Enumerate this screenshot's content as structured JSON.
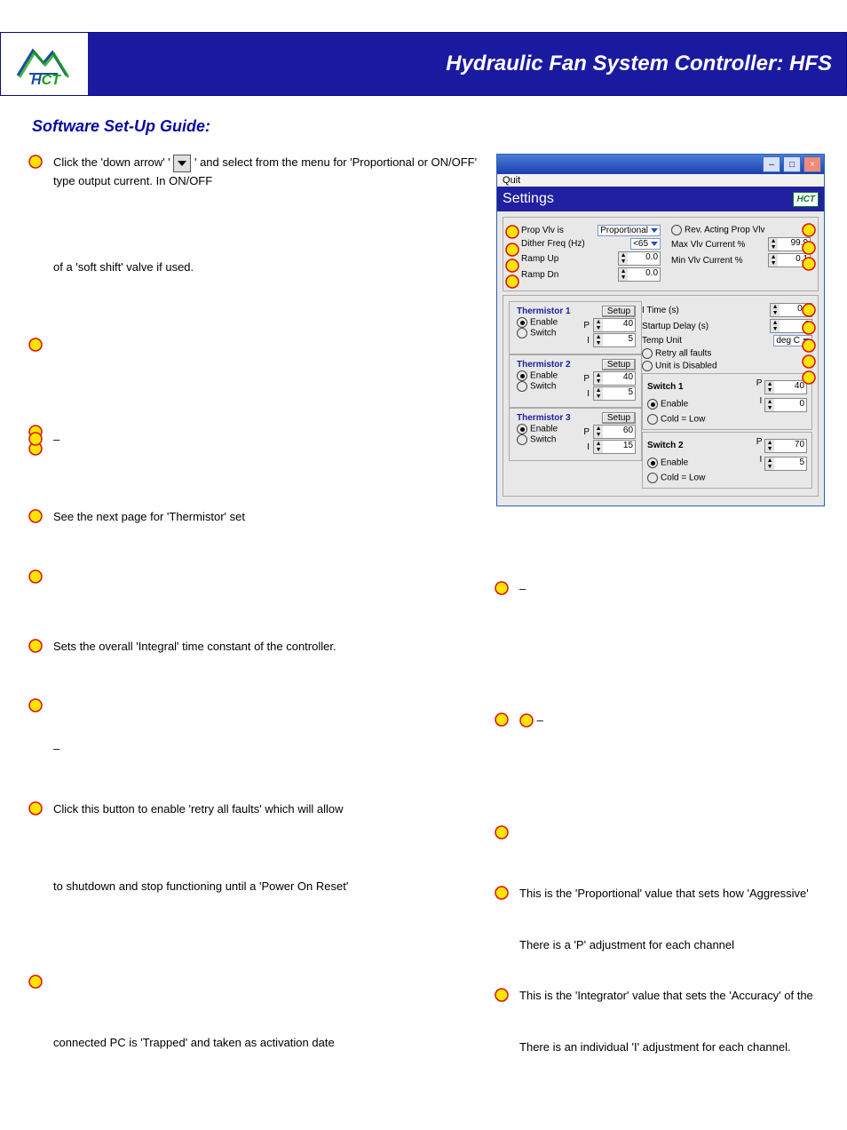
{
  "header": {
    "title": "Hydraulic Fan System Controller: HFS"
  },
  "subtitle": "Software Set-Up Guide:",
  "bullet_color": "#ffe400",
  "bullet_stroke": "#d81010",
  "left_items": [
    {
      "bullet": true,
      "text_a": "Click the 'down arrow' '",
      "dropdown": true,
      "text_b": "' and select from the menu for 'Proportional or ON/OFF' type output current. In ON/OFF"
    },
    {
      "bullet": false,
      "text_a": "of a 'soft shift' valve if used."
    },
    {
      "bullet": true,
      "text_a": ""
    },
    {
      "bullet": true,
      "stack": true,
      "text_a": ""
    },
    {
      "bullet": true,
      "text_a": "                                                  –"
    },
    {
      "bullet": true,
      "text_a": "See the next page for 'Thermistor' set"
    },
    {
      "bullet": true,
      "text_a": ""
    },
    {
      "bullet": true,
      "text_a": "Sets the overall 'Integral' time constant of the controller."
    },
    {
      "bullet": true,
      "text_a": ""
    },
    {
      "bullet": false,
      "text_a": "                                                  –"
    },
    {
      "bullet": true,
      "text_a": "Click this button to enable 'retry all faults' which will allow"
    },
    {
      "bullet": false,
      "text_a": "to shutdown and stop functioning until a 'Power On Reset'"
    },
    {
      "bullet": true,
      "text_a": ""
    },
    {
      "bullet": false,
      "text_a": "connected PC is 'Trapped' and taken as activation date"
    }
  ],
  "right_items": [
    {
      "bullet": true,
      "text_a": "                                                                           –"
    },
    {
      "bullet": true,
      "text_a": "                                                                           –",
      "inline_bullet": true
    },
    {
      "bullet": true,
      "text_a": ""
    },
    {
      "bullet": true,
      "text_a": "This is the 'Proportional' value that sets how 'Aggressive'"
    },
    {
      "bullet": false,
      "text_a": "There is a 'P' adjustment for each channel"
    },
    {
      "bullet": true,
      "text_a": "This is the 'Integrator' value that sets the 'Accuracy' of the"
    },
    {
      "bullet": false,
      "text_a": "There is an individual 'I' adjustment for each channel."
    }
  ],
  "settings": {
    "quit": "Quit",
    "header": "Settings",
    "prop_vlv_label": "Prop Vlv is",
    "prop_vlv_value": "Proportional",
    "dither_label": "Dither Freq      (Hz)",
    "dither_value": "<65",
    "ramp_up_label": "Ramp Up",
    "ramp_up_value": "0.0",
    "ramp_dn_label": "Ramp Dn",
    "ramp_dn_value": "0.0",
    "rev_acting_label": "Rev. Acting Prop Vlv",
    "max_vlv_label": "Max Vlv Current %",
    "max_vlv_value": "99.9",
    "min_vlv_label": "Min Vlv  Current %",
    "min_vlv_value": "0.1",
    "thermistors": [
      {
        "title": "Thermistor 1",
        "enable": true,
        "p": "40",
        "i": "5"
      },
      {
        "title": "Thermistor 2",
        "enable": true,
        "p": "40",
        "i": "5"
      },
      {
        "title": "Thermistor 3",
        "enable": true,
        "p": "60",
        "i": "15"
      }
    ],
    "setup_label": "Setup",
    "enable_label": "Enable",
    "switch_label": "Switch",
    "p_label": "P",
    "i_label": "I",
    "i_time_label": "I Time (s)",
    "i_time_value": "0.0",
    "startup_label": "Startup Delay (s)",
    "startup_value": "3",
    "temp_unit_label": "Temp Unit",
    "temp_unit_value": "deg C",
    "retry_label": "Retry all faults",
    "disabled_label": "Unit is Disabled",
    "switches": [
      {
        "title": "Switch 1",
        "p": "40",
        "i": "0",
        "cold": "Cold = Low"
      },
      {
        "title": "Switch 2",
        "p": "70",
        "i": "5",
        "cold": "Cold = Low"
      }
    ]
  }
}
